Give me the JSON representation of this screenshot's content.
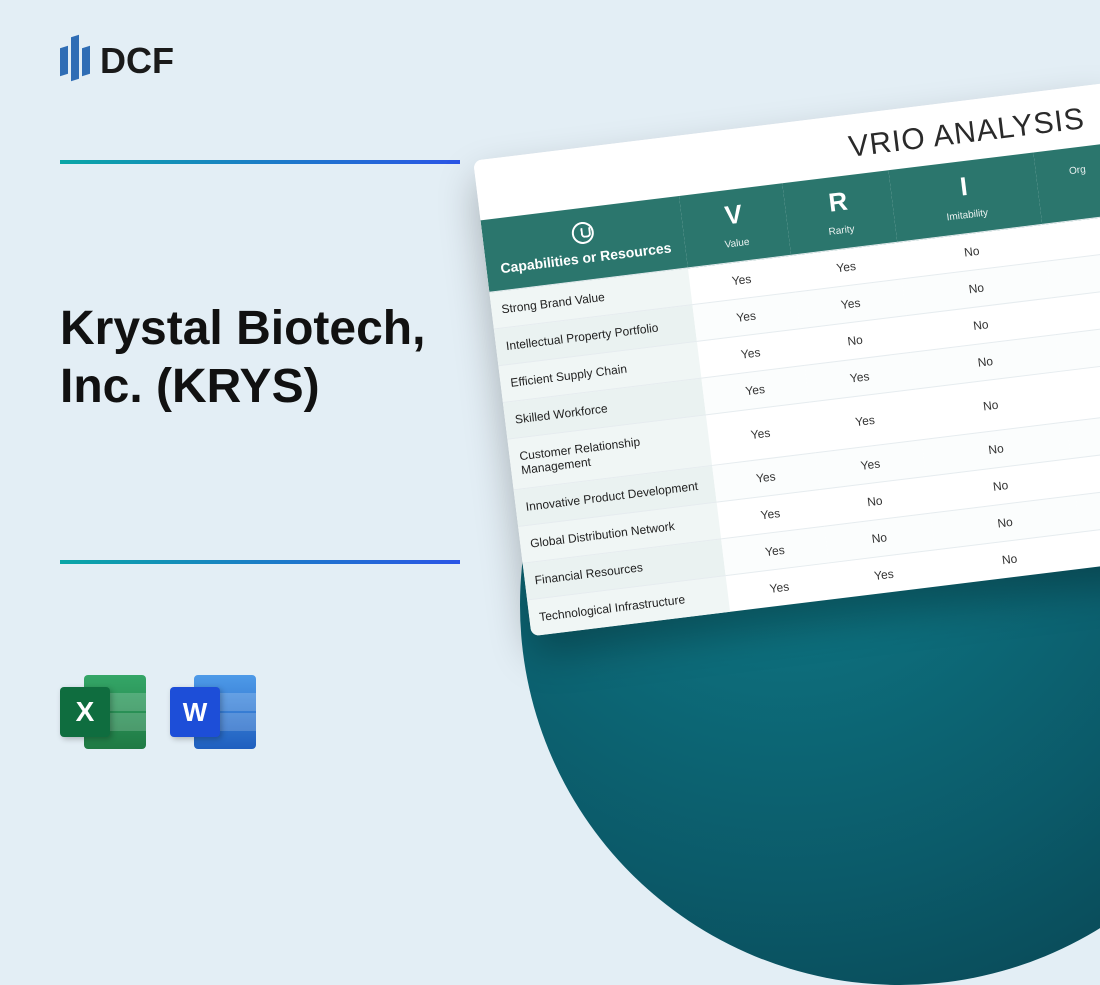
{
  "logo": {
    "text": "DCF"
  },
  "title": "Krystal Biotech, Inc. (KRYS)",
  "icons": {
    "excel_letter": "X",
    "word_letter": "W"
  },
  "colors": {
    "background": "#e3eef5",
    "divider_start": "#0aa6a6",
    "divider_end": "#2b55e6",
    "circle_gradient_inner": "#0f7d8a",
    "circle_gradient_outer": "#083f4c",
    "table_header": "#2b766d",
    "row_label_bg": "#f0f6f5"
  },
  "vrio": {
    "card_title": "VRIO ANALYSIS",
    "header": {
      "capabilities": "Capabilities or Resources",
      "cols": [
        {
          "big": "V",
          "sub": "Value"
        },
        {
          "big": "R",
          "sub": "Rarity"
        },
        {
          "big": "I",
          "sub": "Imitability"
        },
        {
          "big": "",
          "sub": "Org"
        }
      ]
    },
    "rows": [
      {
        "label": "Strong Brand Value",
        "v": "Yes",
        "r": "Yes",
        "i": "No",
        "o": ""
      },
      {
        "label": "Intellectual Property Portfolio",
        "v": "Yes",
        "r": "Yes",
        "i": "No",
        "o": ""
      },
      {
        "label": "Efficient Supply Chain",
        "v": "Yes",
        "r": "No",
        "i": "No",
        "o": ""
      },
      {
        "label": "Skilled Workforce",
        "v": "Yes",
        "r": "Yes",
        "i": "No",
        "o": ""
      },
      {
        "label": "Customer Relationship Management",
        "v": "Yes",
        "r": "Yes",
        "i": "No",
        "o": ""
      },
      {
        "label": "Innovative Product Development",
        "v": "Yes",
        "r": "Yes",
        "i": "No",
        "o": ""
      },
      {
        "label": "Global Distribution Network",
        "v": "Yes",
        "r": "No",
        "i": "No",
        "o": ""
      },
      {
        "label": "Financial Resources",
        "v": "Yes",
        "r": "No",
        "i": "No",
        "o": ""
      },
      {
        "label": "Technological Infrastructure",
        "v": "Yes",
        "r": "Yes",
        "i": "No",
        "o": ""
      }
    ]
  }
}
